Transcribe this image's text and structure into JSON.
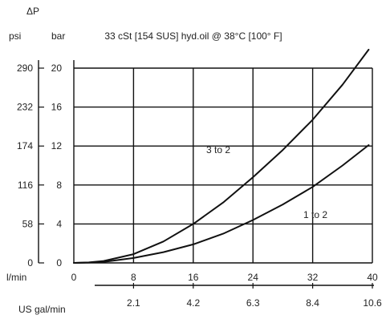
{
  "chart_data": {
    "type": "line",
    "title": "33 cSt [154 SUS] hyd.oil @ 38°C [100° F]",
    "delta_label": "ΔP",
    "y_unit_psi": "psi",
    "y_unit_bar": "bar",
    "x_unit_lmin": "l/min",
    "x_unit_usgal": "US gal/min",
    "x_ticks": [
      0,
      8,
      16,
      24,
      32,
      40
    ],
    "usgal_ticks": [
      {
        "value": 2.1,
        "x": 8
      },
      {
        "value": 4.2,
        "x": 16
      },
      {
        "value": 6.3,
        "x": 24
      },
      {
        "value": 8.4,
        "x": 32
      },
      {
        "value": 10.6,
        "x": 40
      }
    ],
    "bar_ticks": [
      0,
      4,
      8,
      12,
      16,
      20
    ],
    "psi_ticks": [
      {
        "value": 0,
        "bar": 0
      },
      {
        "value": 58,
        "bar": 4
      },
      {
        "value": 116,
        "bar": 8
      },
      {
        "value": 174,
        "bar": 12
      },
      {
        "value": 232,
        "bar": 16
      },
      {
        "value": 290,
        "bar": 20
      }
    ],
    "xlim": [
      0,
      40
    ],
    "ylim": [
      0,
      20
    ],
    "grid": true,
    "series": [
      {
        "name": "3 to 2",
        "x": [
          0,
          2,
          4,
          8,
          12,
          16,
          20,
          24,
          28,
          32,
          36,
          39.5
        ],
        "y": [
          0,
          0.05,
          0.2,
          0.9,
          2.2,
          4.0,
          6.2,
          8.8,
          11.6,
          14.7,
          18.3,
          21.9
        ]
      },
      {
        "name": "1 to 2",
        "x": [
          0,
          2,
          4,
          8,
          12,
          16,
          20,
          24,
          28,
          32,
          36,
          39.5
        ],
        "y": [
          0,
          0.03,
          0.1,
          0.5,
          1.1,
          1.9,
          3.0,
          4.4,
          6.0,
          7.8,
          10.0,
          12.1
        ]
      }
    ]
  }
}
